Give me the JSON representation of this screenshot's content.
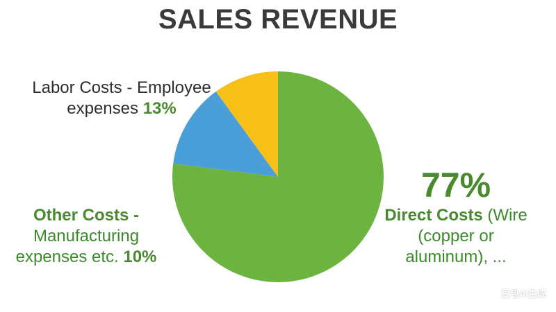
{
  "chart_data": {
    "type": "pie",
    "title": "SALES REVENUE",
    "series": [
      {
        "slices": [
          {
            "label": "Direct Costs (Wire (copper or aluminum), ...",
            "value": 77,
            "color": "#6db33f"
          },
          {
            "label": "Labor Costs - Employee expenses",
            "value": 13,
            "color": "#4a9fd8"
          },
          {
            "label": "Other Costs - Manufacturing expenses etc.",
            "value": 10,
            "color": "#f6c018"
          }
        ]
      }
    ],
    "start_angle_deg": 0,
    "direction": "clockwise-from-top-for-green"
  },
  "labels": {
    "labor_line1": "Labor Costs - Employee",
    "labor_line2": "expenses",
    "labor_pct": "13%",
    "other_line1": "Other Costs -",
    "other_line2": "Manufacturing",
    "other_line3": "expenses etc.",
    "other_pct": "10%",
    "direct_pct": "77%",
    "direct_line1_bold": "Direct Costs",
    "direct_line1_rest": " (Wire",
    "direct_line2": "(copper or",
    "direct_line3": "aluminum), ..."
  },
  "watermark": "豆包AI生成"
}
